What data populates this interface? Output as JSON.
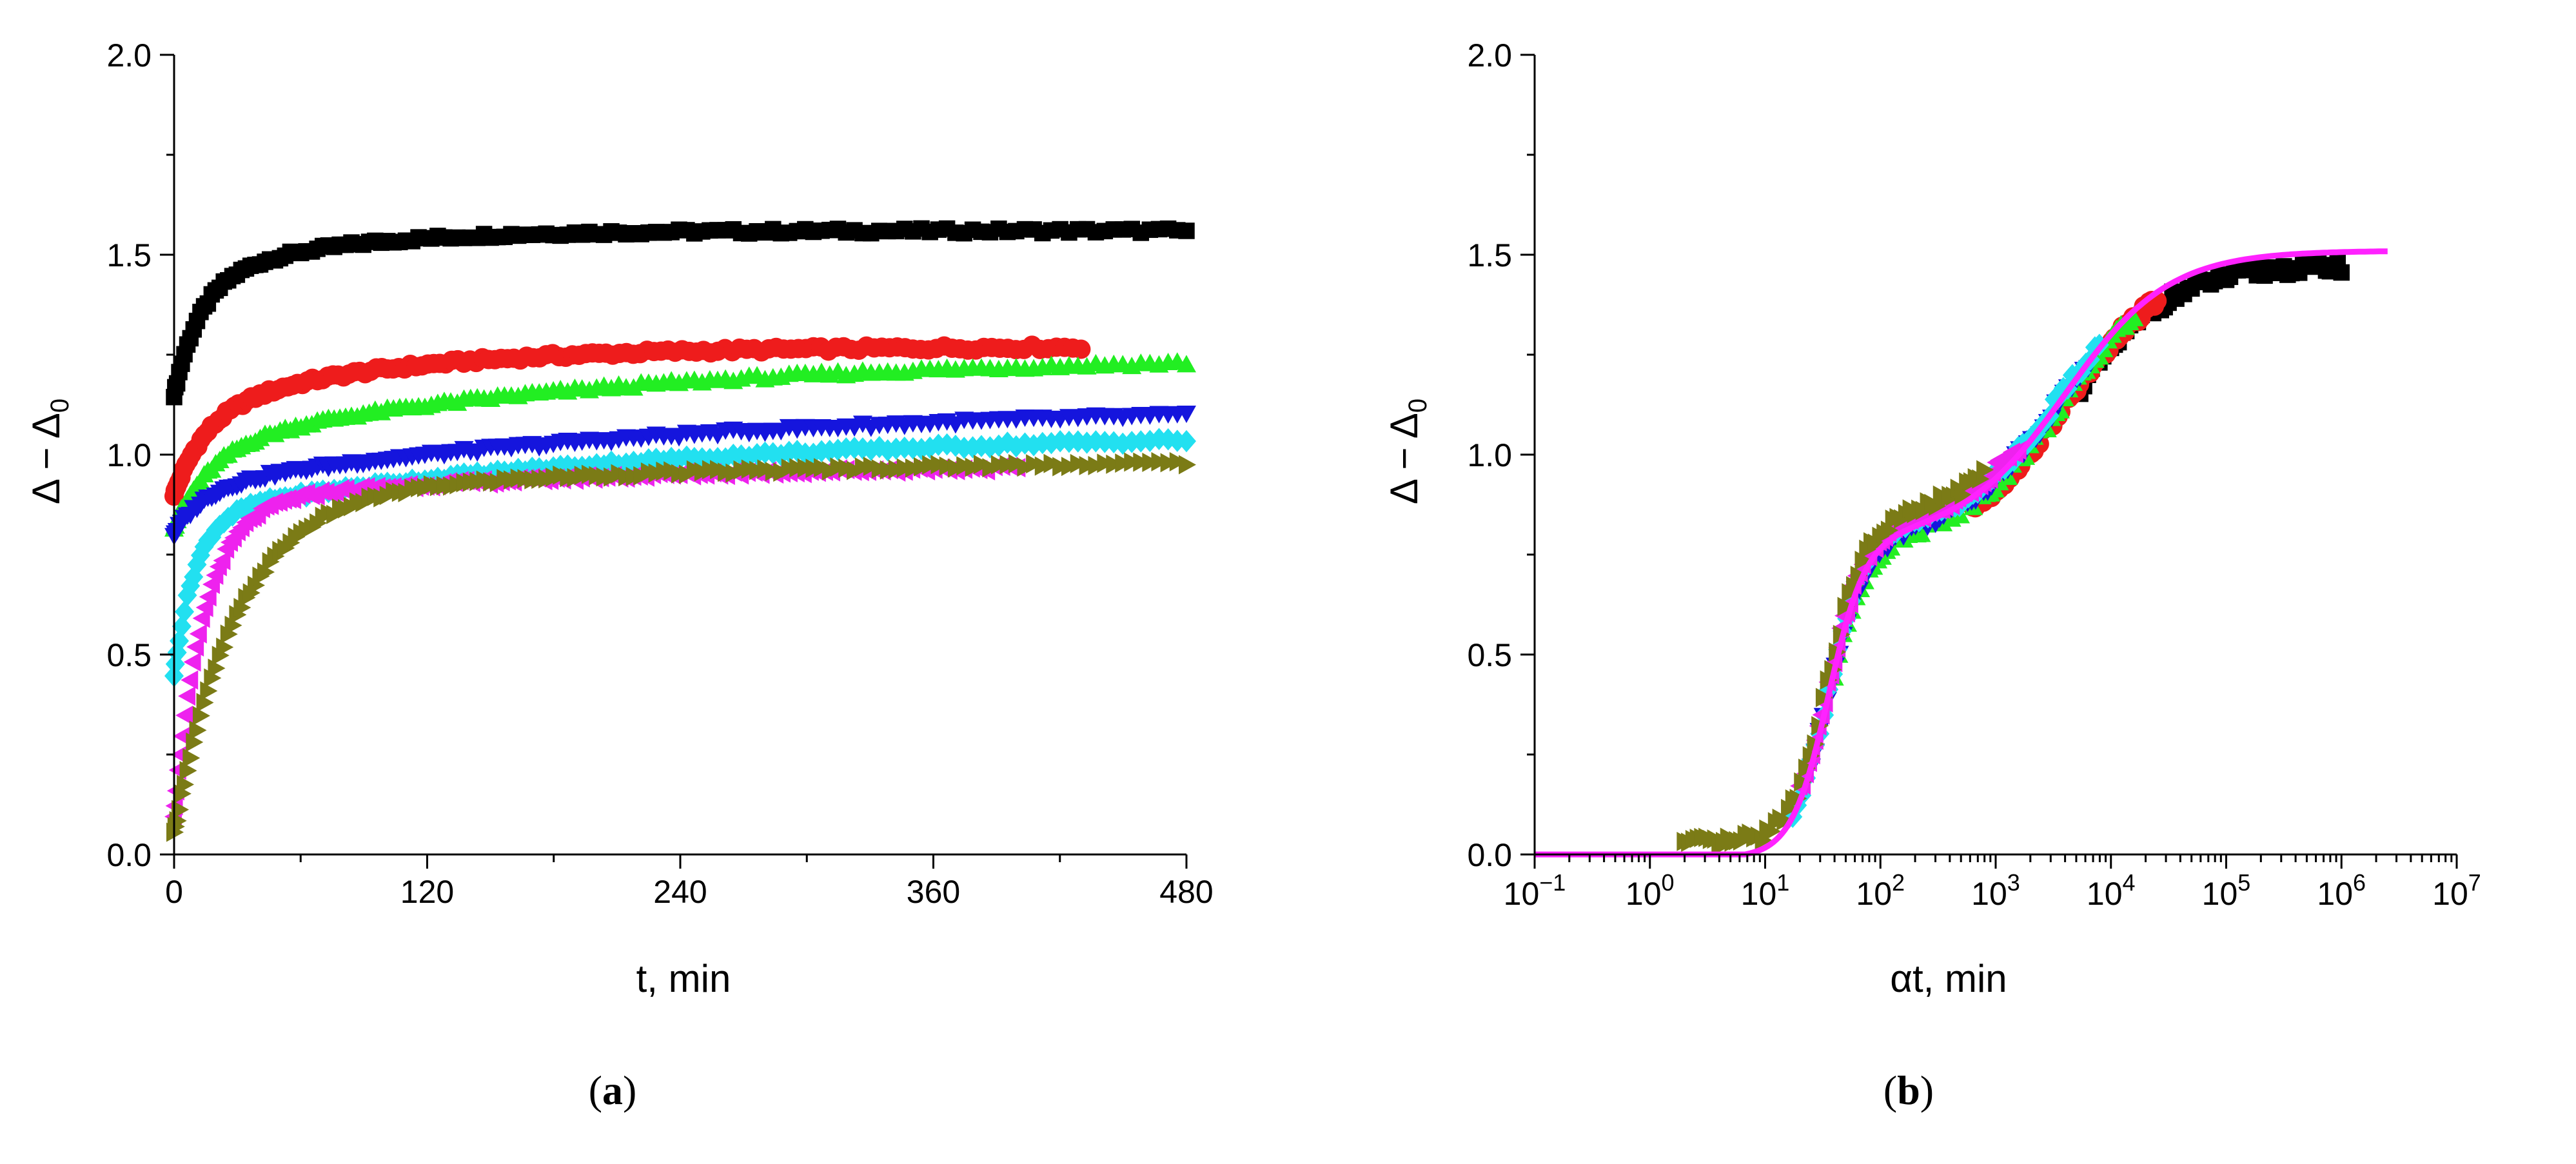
{
  "chart_data": [
    {
      "type": "scatter",
      "panel": "a",
      "caption_open": "(",
      "caption_letter": "a",
      "caption_close": ")",
      "xlabel": "t, min",
      "ylabel_main": "Δ − Δ",
      "ylabel_sub": "0",
      "xlim": [
        0,
        480
      ],
      "ylim": [
        0,
        2.0
      ],
      "xticks": [
        0,
        120,
        240,
        360,
        480
      ],
      "xtick_labels": [
        "0",
        "120",
        "240",
        "360",
        "480"
      ],
      "yticks": [
        0,
        0.5,
        1.0,
        1.5,
        2.0
      ],
      "ytick_labels": [
        "0.0",
        "0.5",
        "1.0",
        "1.5",
        "2.0"
      ],
      "series": [
        {
          "name": "black-squares",
          "color": "#000000",
          "marker": "square",
          "x_max": 480,
          "a": 1.15,
          "b": 0.27,
          "tau": 12,
          "c": 0.14,
          "tau2": 60,
          "d": 0.0
        },
        {
          "name": "red-circles",
          "color": "#ee1c1c",
          "marker": "circle",
          "x_max": 430,
          "a": 0.9,
          "b": 0.2,
          "tau": 15,
          "c": 0.17,
          "tau2": 90,
          "d": 0.0
        },
        {
          "name": "green-up-triangles",
          "color": "#22ee22",
          "marker": "triangle-up",
          "x_max": 480,
          "a": 0.82,
          "b": 0.2,
          "tau": 18,
          "c": 0.23,
          "tau2": 200,
          "d": 0.0
        },
        {
          "name": "blue-down-triangles",
          "color": "#1515dd",
          "marker": "triangle-down",
          "x_max": 480,
          "a": 0.8,
          "b": 0.12,
          "tau": 15,
          "c": 0.21,
          "tau2": 250,
          "d": 0.0
        },
        {
          "name": "cyan-diamonds",
          "color": "#22e0f0",
          "marker": "diamond",
          "x_max": 480,
          "a": 0.45,
          "b": 0.4,
          "tau": 10,
          "c": 0.21,
          "tau2": 220,
          "d": 0.0
        },
        {
          "name": "magenta-left-triangles",
          "color": "#ee22ee",
          "marker": "triangle-left",
          "x_max": 400,
          "a": 0.1,
          "b": 0.78,
          "tau": 14,
          "c": 0.1,
          "tau2": 200,
          "d": 0.0
        },
        {
          "name": "olive-right-triangles",
          "color": "#7b7b16",
          "marker": "triangle-right",
          "x_max": 480,
          "a": 0.05,
          "b": 0.85,
          "tau": 30,
          "c": 0.1,
          "tau2": 300,
          "d": 0.0
        }
      ]
    },
    {
      "type": "scatter",
      "panel": "b",
      "caption_open": "(",
      "caption_letter": "b",
      "caption_close": ")",
      "xlabel": "αt, min",
      "ylabel_main": "Δ − Δ",
      "ylabel_sub": "0",
      "xscale": "log",
      "xlim_exp": [
        -1,
        7
      ],
      "ylim": [
        0,
        2.0
      ],
      "xtick_base": "10",
      "xtick_exponents": [
        "−1",
        "0",
        "1",
        "2",
        "3",
        "4",
        "5",
        "6",
        "7"
      ],
      "yticks": [
        0,
        0.5,
        1.0,
        1.5,
        2.0
      ],
      "ytick_labels": [
        "0.0",
        "0.5",
        "1.0",
        "1.5",
        "2.0"
      ],
      "fit_line": {
        "name": "fit",
        "color": "#ff22ff",
        "x_range_exp": [
          -1,
          6.4
        ]
      },
      "series": [
        {
          "name": "black-squares",
          "color": "#000000",
          "marker": "square",
          "range_exp": [
            3.7,
            6.0
          ]
        },
        {
          "name": "red-circles",
          "color": "#ee1c1c",
          "marker": "circle",
          "range_exp": [
            2.8,
            4.4
          ]
        },
        {
          "name": "green-up-triangles",
          "color": "#22ee22",
          "marker": "triangle-up",
          "range_exp": [
            1.6,
            4.2
          ]
        },
        {
          "name": "blue-down-triangles",
          "color": "#1515dd",
          "marker": "triangle-down",
          "range_exp": [
            1.4,
            3.8
          ]
        },
        {
          "name": "cyan-diamonds",
          "color": "#22e0f0",
          "marker": "diamond",
          "range_exp": [
            1.2,
            3.9
          ]
        },
        {
          "name": "magenta-left-triangles",
          "color": "#ee22ee",
          "marker": "triangle-left",
          "range_exp": [
            1.3,
            3.2
          ]
        },
        {
          "name": "olive-right-triangles",
          "color": "#7b7b16",
          "marker": "triangle-right",
          "range_exp": [
            0.3,
            2.9
          ]
        }
      ]
    }
  ]
}
